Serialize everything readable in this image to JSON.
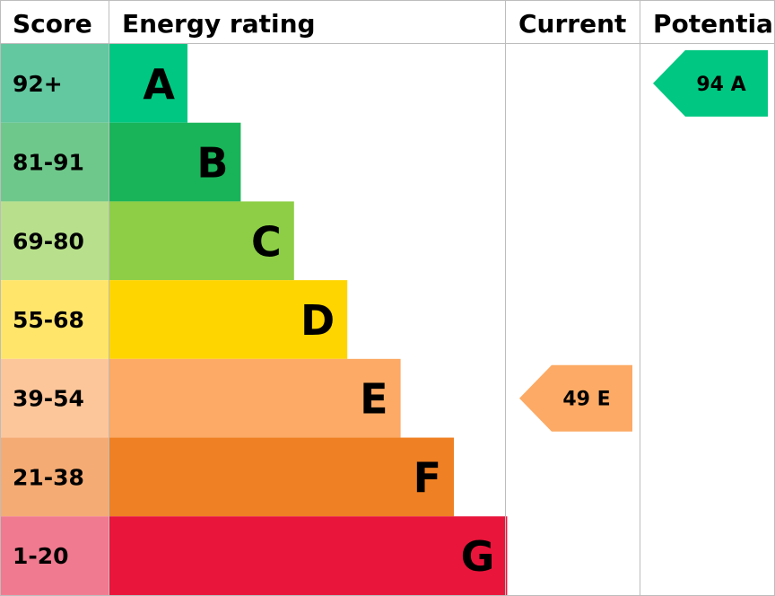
{
  "chart_data": {
    "type": "bar",
    "headers": {
      "score": "Score",
      "rating": "Energy rating",
      "current": "Current",
      "potential": "Potential"
    },
    "bands": [
      {
        "score": "92+",
        "letter": "A",
        "min": 92,
        "max": 100,
        "color": "#00c781",
        "score_bg": "#63c7a0"
      },
      {
        "score": "81-91",
        "letter": "B",
        "min": 81,
        "max": 91,
        "color": "#19b459",
        "score_bg": "#6fc88b"
      },
      {
        "score": "69-80",
        "letter": "C",
        "min": 69,
        "max": 80,
        "color": "#8dce46",
        "score_bg": "#b8e08c"
      },
      {
        "score": "55-68",
        "letter": "D",
        "min": 55,
        "max": 68,
        "color": "#ffd500",
        "score_bg": "#ffe66b"
      },
      {
        "score": "39-54",
        "letter": "E",
        "min": 39,
        "max": 54,
        "color": "#fcaa65",
        "score_bg": "#fdc69a"
      },
      {
        "score": "21-38",
        "letter": "F",
        "min": 21,
        "max": 38,
        "color": "#ef8023",
        "score_bg": "#f4ab74"
      },
      {
        "score": "1-20",
        "letter": "G",
        "min": 1,
        "max": 20,
        "color": "#e9153b",
        "score_bg": "#f07a8f"
      }
    ],
    "current": {
      "value": 49,
      "letter": "E",
      "label": "49 E",
      "color": "#fcaa65"
    },
    "potential": {
      "value": 94,
      "letter": "A",
      "label": "94 A",
      "color": "#00c781"
    }
  }
}
